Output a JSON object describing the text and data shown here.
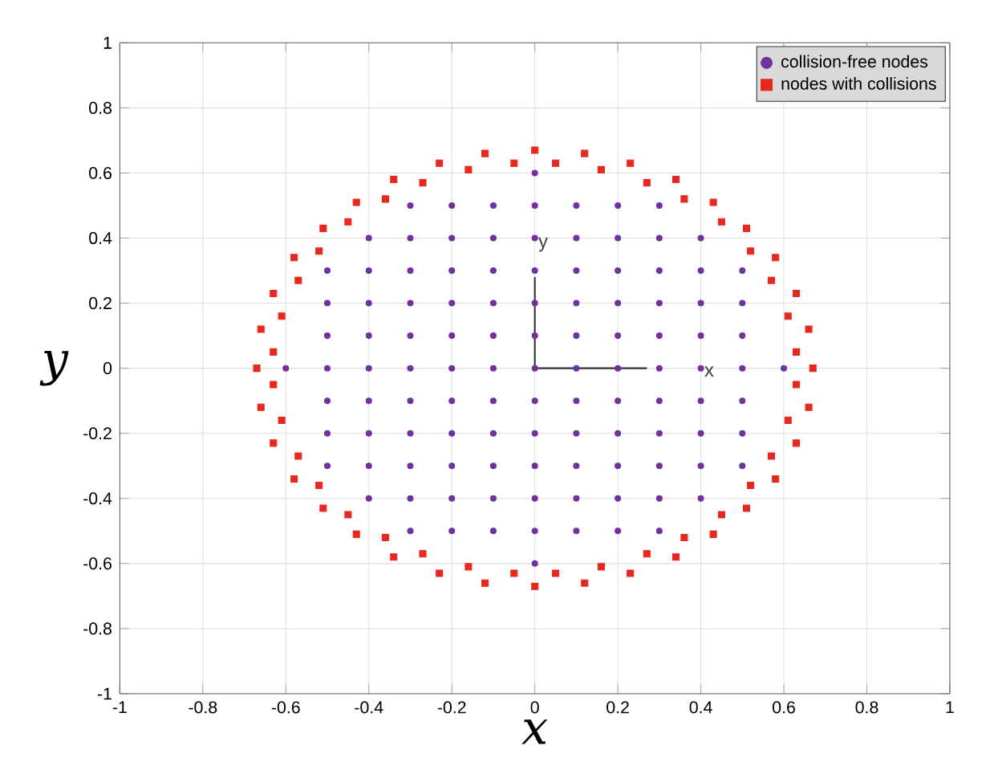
{
  "chart_data": {
    "type": "scatter",
    "xlabel": "x",
    "ylabel": "y",
    "xlim": [
      -1,
      1
    ],
    "ylim": [
      -1,
      1
    ],
    "xticks": [
      -1,
      -0.8,
      -0.6,
      -0.4,
      -0.2,
      0,
      0.2,
      0.4,
      0.6,
      0.8,
      1
    ],
    "yticks": [
      -1,
      -0.8,
      -0.6,
      -0.4,
      -0.2,
      0,
      0.2,
      0.4,
      0.6,
      0.8,
      1
    ],
    "grid": true,
    "legend": "top right",
    "annotations": [
      {
        "text": "y",
        "x": 0.02,
        "y": 0.38
      },
      {
        "text": "x",
        "x": 0.42,
        "y": -0.01
      }
    ],
    "series": [
      {
        "name": "collision-free nodes",
        "color": "#7030a0",
        "marker": "circle",
        "x": [
          0,
          -0.3,
          -0.2,
          -0.1,
          0,
          0.1,
          0.2,
          0.3,
          -0.4,
          -0.3,
          -0.2,
          -0.1,
          0,
          0.1,
          0.2,
          0.3,
          0.4,
          -0.5,
          -0.4,
          -0.3,
          -0.2,
          -0.1,
          0,
          0.1,
          0.2,
          0.3,
          0.4,
          0.5,
          -0.5,
          -0.4,
          -0.3,
          -0.2,
          -0.1,
          0,
          0.1,
          0.2,
          0.3,
          0.4,
          0.5,
          -0.5,
          -0.4,
          -0.3,
          -0.2,
          -0.1,
          0,
          0.1,
          0.2,
          0.3,
          0.4,
          0.5,
          -0.6,
          -0.5,
          -0.4,
          -0.3,
          -0.2,
          -0.1,
          0,
          0.1,
          0.2,
          0.3,
          0.4,
          0.5,
          0.6,
          -0.5,
          -0.4,
          -0.3,
          -0.2,
          -0.1,
          0,
          0.1,
          0.2,
          0.3,
          0.4,
          0.5,
          -0.5,
          -0.4,
          -0.3,
          -0.2,
          -0.1,
          0,
          0.1,
          0.2,
          0.3,
          0.4,
          0.5,
          -0.5,
          -0.4,
          -0.3,
          -0.2,
          -0.1,
          0,
          0.1,
          0.2,
          0.3,
          0.4,
          0.5,
          -0.4,
          -0.3,
          -0.2,
          -0.1,
          0,
          0.1,
          0.2,
          0.3,
          0.4,
          -0.3,
          -0.2,
          -0.1,
          0,
          0.1,
          0.2,
          0.3,
          0
        ],
        "values": [
          0.6,
          0.5,
          0.5,
          0.5,
          0.5,
          0.5,
          0.5,
          0.5,
          0.4,
          0.4,
          0.4,
          0.4,
          0.4,
          0.4,
          0.4,
          0.4,
          0.4,
          0.3,
          0.3,
          0.3,
          0.3,
          0.3,
          0.3,
          0.3,
          0.3,
          0.3,
          0.3,
          0.3,
          0.2,
          0.2,
          0.2,
          0.2,
          0.2,
          0.2,
          0.2,
          0.2,
          0.2,
          0.2,
          0.2,
          0.1,
          0.1,
          0.1,
          0.1,
          0.1,
          0.1,
          0.1,
          0.1,
          0.1,
          0.1,
          0.1,
          0,
          0,
          0,
          0,
          0,
          0,
          0,
          0,
          0,
          0,
          0,
          0,
          0,
          -0.1,
          -0.1,
          -0.1,
          -0.1,
          -0.1,
          -0.1,
          -0.1,
          -0.1,
          -0.1,
          -0.1,
          -0.1,
          -0.2,
          -0.2,
          -0.2,
          -0.2,
          -0.2,
          -0.2,
          -0.2,
          -0.2,
          -0.2,
          -0.2,
          -0.2,
          -0.3,
          -0.3,
          -0.3,
          -0.3,
          -0.3,
          -0.3,
          -0.3,
          -0.3,
          -0.3,
          -0.3,
          -0.3,
          -0.4,
          -0.4,
          -0.4,
          -0.4,
          -0.4,
          -0.4,
          -0.4,
          -0.4,
          -0.4,
          -0.5,
          -0.5,
          -0.5,
          -0.5,
          -0.5,
          -0.5,
          -0.5,
          -0.6
        ]
      },
      {
        "name": "nodes with collisions",
        "color": "#e8281e",
        "marker": "square",
        "x": [
          0.67,
          0.66,
          0.63,
          0.58,
          0.51,
          0.43,
          0.34,
          0.23,
          0.12,
          0,
          -0.12,
          -0.23,
          -0.34,
          -0.43,
          -0.51,
          -0.58,
          -0.63,
          -0.66,
          -0.67,
          -0.66,
          -0.63,
          -0.58,
          -0.51,
          -0.43,
          -0.34,
          -0.23,
          -0.12,
          0,
          0.12,
          0.23,
          0.34,
          0.43,
          0.51,
          0.58,
          0.63,
          0.66,
          0.63,
          0.61,
          0.57,
          0.52,
          0.45,
          0.36,
          0.27,
          0.16,
          0.05,
          -0.05,
          -0.16,
          -0.27,
          -0.36,
          -0.45,
          -0.52,
          -0.57,
          -0.61,
          -0.63,
          -0.63,
          -0.61,
          -0.57,
          -0.52,
          -0.45,
          -0.36,
          -0.27,
          -0.16,
          -0.05,
          0.05,
          0.16,
          0.27,
          0.36,
          0.45,
          0.52,
          0.57,
          0.61,
          0.63
        ],
        "values": [
          0,
          0.12,
          0.23,
          0.34,
          0.43,
          0.51,
          0.58,
          0.63,
          0.66,
          0.67,
          0.66,
          0.63,
          0.58,
          0.51,
          0.43,
          0.34,
          0.23,
          0.12,
          0,
          -0.12,
          -0.23,
          -0.34,
          -0.43,
          -0.51,
          -0.58,
          -0.63,
          -0.66,
          -0.67,
          -0.66,
          -0.63,
          -0.58,
          -0.51,
          -0.43,
          -0.34,
          -0.23,
          -0.12,
          0.05,
          0.16,
          0.27,
          0.36,
          0.45,
          0.52,
          0.57,
          0.61,
          0.63,
          0.63,
          0.61,
          0.57,
          0.52,
          0.45,
          0.36,
          0.27,
          0.16,
          0.05,
          -0.05,
          -0.16,
          -0.27,
          -0.36,
          -0.45,
          -0.52,
          -0.57,
          -0.61,
          -0.63,
          -0.63,
          -0.61,
          -0.57,
          -0.52,
          -0.45,
          -0.36,
          -0.27,
          -0.16,
          -0.05
        ]
      },
      {
        "type": "line",
        "color": "#333333",
        "marker": "none",
        "x": [
          0,
          0.27
        ],
        "values": [
          0,
          0
        ]
      },
      {
        "type": "line",
        "color": "#333333",
        "marker": "none",
        "x": [
          0,
          0
        ],
        "values": [
          0,
          0.28
        ]
      }
    ]
  }
}
